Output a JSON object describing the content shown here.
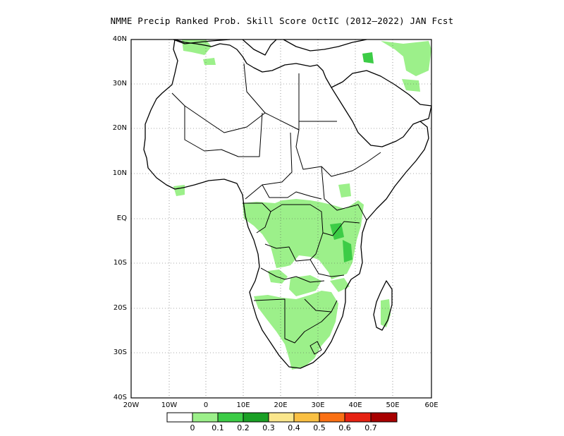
{
  "title": "NMME Precip Ranked Prob. Skill Score OctIC (2012–2022) JAN Fcst",
  "map": {
    "lon_range": [
      -20,
      60
    ],
    "lat_range": [
      -40,
      40
    ],
    "lat_ticks": [
      "40N",
      "30N",
      "20N",
      "10N",
      "EQ",
      "10S",
      "20S",
      "30S",
      "40S"
    ],
    "lon_ticks": [
      "20W",
      "10W",
      "0",
      "10E",
      "20E",
      "30E",
      "40E",
      "50E",
      "60E"
    ],
    "gridlines": "dotted"
  },
  "colorbar": {
    "colors": [
      "#ffffff",
      "#9cf08a",
      "#3ccc46",
      "#1aa025",
      "#fae68c",
      "#fac043",
      "#fa7014",
      "#e62212",
      "#a80000"
    ],
    "labels": [
      "0",
      "0.1",
      "0.2",
      "0.3",
      "0.4",
      "0.5",
      "0.6",
      "0.7"
    ]
  }
}
